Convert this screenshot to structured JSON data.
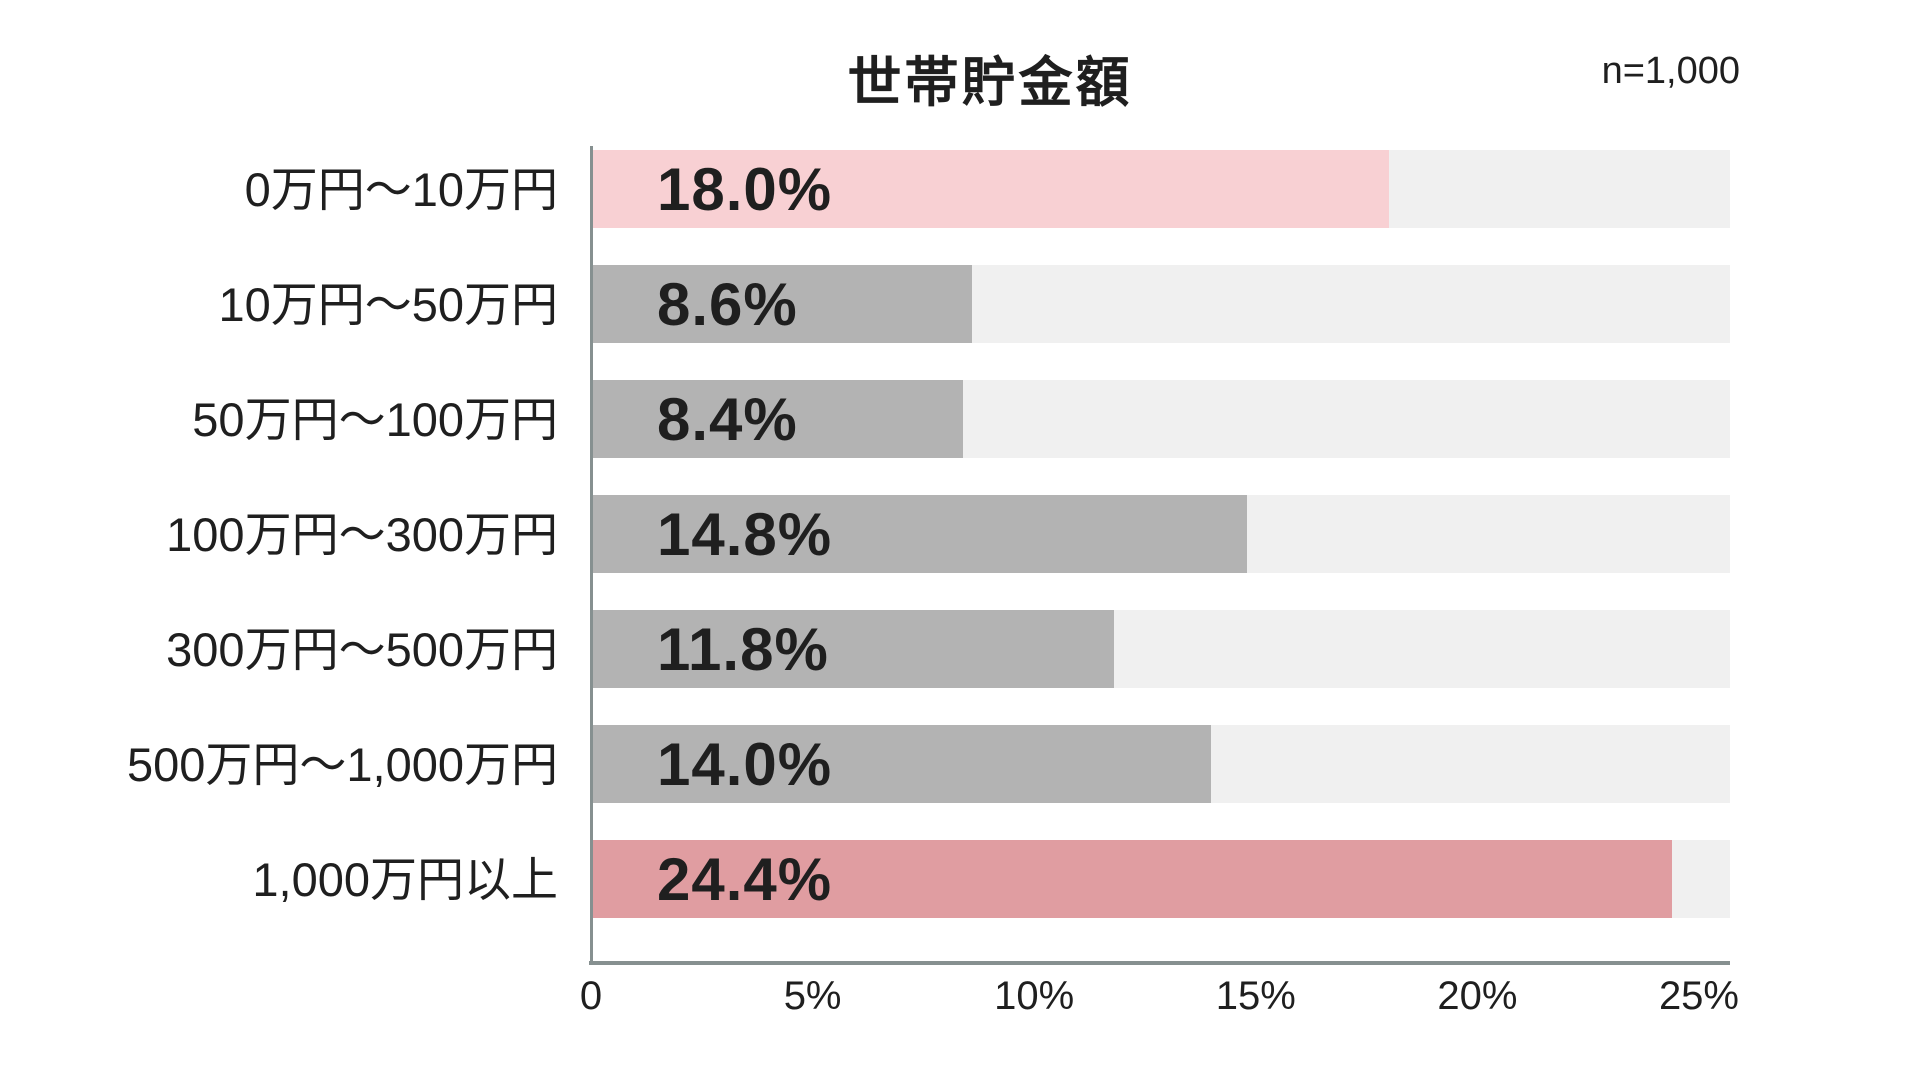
{
  "chart": {
    "title": "世帯貯金額",
    "n_label": "n=1,000",
    "colors": {
      "track": "#f0f0f0",
      "axis": "#869090",
      "text": "#1f1f1f",
      "bar_pink_light": "#f8d0d3",
      "bar_pink_strong": "#e09da1",
      "bar_gray": "#b3b3b3"
    }
  },
  "chart_data": {
    "type": "bar",
    "orientation": "horizontal",
    "title": "世帯貯金額",
    "sample_size_label": "n=1,000",
    "categories": [
      "0万円～10万円",
      "10万円～50万円",
      "50万円～100万円",
      "100万円～300万円",
      "300万円～500万円",
      "500万円～1,000万円",
      "1,000万円以上"
    ],
    "values": [
      18.0,
      8.6,
      8.4,
      14.8,
      11.8,
      14.0,
      24.4
    ],
    "value_labels": [
      "18.0%",
      "8.6%",
      "8.4%",
      "14.8%",
      "11.8%",
      "14.0%",
      "24.4%"
    ],
    "bar_colors": [
      "#f8d0d3",
      "#b3b3b3",
      "#b3b3b3",
      "#b3b3b3",
      "#b3b3b3",
      "#b3b3b3",
      "#e09da1"
    ],
    "xlabel": "",
    "ylabel": "",
    "x_ticks": [
      "0",
      "5%",
      "10%",
      "15%",
      "20%",
      "25%"
    ],
    "x_tick_values": [
      0,
      5,
      10,
      15,
      20,
      25
    ],
    "xlim": [
      0,
      25.7
    ],
    "grid": false,
    "legend": false,
    "value_label_position": "inside-left"
  }
}
